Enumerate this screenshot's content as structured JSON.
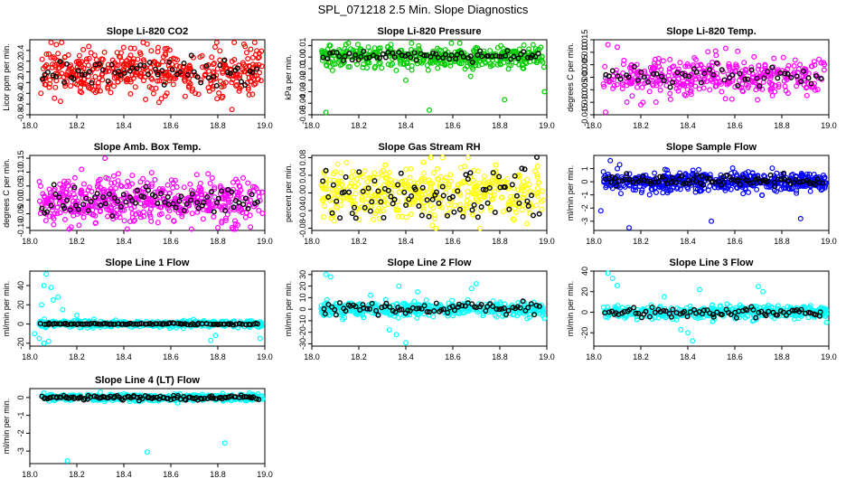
{
  "figure": {
    "title": "SPL_071218  2.5 Min. Slope Diagnostics",
    "background": "#ffffff",
    "overlay_color": "#000000",
    "marker": "open-circle"
  },
  "chart_data": [
    {
      "id": "p1",
      "type": "scatter",
      "title": "Slope Li-820 CO2",
      "ylabel": "Licor ppm per min.",
      "color": "#ff0000",
      "xlim": [
        18.0,
        19.0
      ],
      "ylim": [
        -0.8,
        0.6
      ],
      "xticks": [
        18.0,
        18.2,
        18.4,
        18.6,
        18.8,
        19.0
      ],
      "xticklabels": [
        "18.0",
        "18.2",
        "18.4",
        "18.6",
        "18.8",
        "19.0"
      ],
      "yticks": [
        -0.8,
        -0.6,
        -0.4,
        -0.2,
        0.0,
        0.2,
        0.4
      ],
      "yticklabels": [
        "-0.8",
        "-0.6",
        "-0.4",
        "-0.2",
        "0.0",
        "0.2",
        "0.4"
      ],
      "cloud": {
        "n": 460,
        "center": 0.0,
        "spread": 0.22,
        "min": -0.75,
        "max": 0.55
      },
      "overlay": {
        "n": 60,
        "center": 0.0,
        "spread": 0.12
      },
      "outliers": [
        {
          "x": 18.87,
          "y": 0.55
        },
        {
          "x": 18.86,
          "y": -0.7
        },
        {
          "x": 18.56,
          "y": -0.5
        }
      ]
    },
    {
      "id": "p2",
      "type": "scatter",
      "title": "Slope Li-820 Pressure",
      "ylabel": "kPa per min.",
      "color": "#00cc00",
      "xlim": [
        18.0,
        19.0
      ],
      "ylim": [
        -0.05,
        0.015
      ],
      "xticks": [
        18.0,
        18.2,
        18.4,
        18.6,
        18.8,
        19.0
      ],
      "xticklabels": [
        "18.0",
        "18.2",
        "18.4",
        "18.6",
        "18.8",
        "19.0"
      ],
      "yticks": [
        -0.05,
        -0.04,
        -0.03,
        -0.02,
        -0.01,
        0.0,
        0.01
      ],
      "yticklabels": [
        "-0.05",
        "-0.04",
        "-0.03",
        "-0.02",
        "-0.01",
        "0.00",
        "0.01"
      ],
      "cloud": {
        "n": 420,
        "center": 0.0,
        "spread": 0.005,
        "min": -0.022,
        "max": 0.012
      },
      "overlay": {
        "n": 70,
        "center": 0.001,
        "spread": 0.002
      },
      "outliers": [
        {
          "x": 18.06,
          "y": -0.048
        },
        {
          "x": 18.5,
          "y": -0.046
        },
        {
          "x": 18.82,
          "y": -0.037
        },
        {
          "x": 18.99,
          "y": -0.03
        },
        {
          "x": 18.4,
          "y": -0.02
        }
      ]
    },
    {
      "id": "p3",
      "type": "scatter",
      "title": "Slope Li-820 Temp.",
      "ylabel": "degrees C per min.",
      "color": "#ff00ff",
      "xlim": [
        18.0,
        19.0
      ],
      "ylim": [
        -0.015,
        0.015
      ],
      "xticks": [
        18.0,
        18.2,
        18.4,
        18.6,
        18.8,
        19.0
      ],
      "xticklabels": [
        "18.0",
        "18.2",
        "18.4",
        "18.6",
        "18.8",
        "19.0"
      ],
      "yticks": [
        -0.015,
        -0.01,
        -0.005,
        0.0,
        0.005,
        0.01,
        0.015
      ],
      "yticklabels": [
        "-0.015",
        "-0.010",
        "-0.005",
        "0.000",
        "0.005",
        "0.010",
        "0.015"
      ],
      "cloud": {
        "n": 380,
        "center": 0.0,
        "spread": 0.004,
        "min": -0.014,
        "max": 0.014
      },
      "overlay": {
        "n": 55,
        "center": 0.0,
        "spread": 0.002
      },
      "outliers": [
        {
          "x": 18.06,
          "y": 0.013
        },
        {
          "x": 18.1,
          "y": 0.012
        },
        {
          "x": 18.2,
          "y": -0.011
        },
        {
          "x": 18.05,
          "y": -0.014
        }
      ]
    },
    {
      "id": "p4",
      "type": "scatter",
      "title": "Slope Amb. Box Temp.",
      "ylabel": "degrees C per min.",
      "color": "#ff00ff",
      "xlim": [
        18.0,
        19.0
      ],
      "ylim": [
        -0.11,
        0.16
      ],
      "xticks": [
        18.0,
        18.2,
        18.4,
        18.6,
        18.8,
        19.0
      ],
      "xticklabels": [
        "18.0",
        "18.2",
        "18.4",
        "18.6",
        "18.8",
        "19.0"
      ],
      "yticks": [
        -0.1,
        -0.05,
        0.0,
        0.05,
        0.1,
        0.15
      ],
      "yticklabels": [
        "-0.10",
        "-0.05",
        "0.00",
        "0.05",
        "0.10",
        "0.15"
      ],
      "cloud": {
        "n": 520,
        "center": 0.0,
        "spread": 0.04,
        "min": -0.105,
        "max": 0.13
      },
      "overlay": {
        "n": 75,
        "center": 0.0,
        "spread": 0.03
      },
      "outliers": [
        {
          "x": 18.32,
          "y": 0.15
        },
        {
          "x": 18.8,
          "y": -0.1
        },
        {
          "x": 18.22,
          "y": 0.11
        }
      ]
    },
    {
      "id": "p5",
      "type": "scatter",
      "title": "Slope Gas Stream RH",
      "ylabel": "percent per min.",
      "color": "#ffff00",
      "xlim": [
        18.0,
        19.0
      ],
      "ylim": [
        -0.085,
        0.085
      ],
      "xticks": [
        18.0,
        18.2,
        18.4,
        18.6,
        18.8,
        19.0
      ],
      "xticklabels": [
        "18.0",
        "18.2",
        "18.4",
        "18.6",
        "18.8",
        "19.0"
      ],
      "yticks": [
        -0.08,
        -0.04,
        0.0,
        0.04,
        0.08
      ],
      "yticklabels": [
        "-0.08",
        "-0.04",
        "0.00",
        "0.04",
        "0.08"
      ],
      "cloud": {
        "n": 430,
        "center": 0.0,
        "spread": 0.032,
        "min": -0.08,
        "max": 0.08
      },
      "overlay": {
        "n": 85,
        "center": 0.0,
        "spread": 0.03
      },
      "outliers": []
    },
    {
      "id": "p6",
      "type": "scatter",
      "title": "Slope Sample Flow",
      "ylabel": "ml/min per min.",
      "color": "#0000ff",
      "xlim": [
        18.0,
        19.0
      ],
      "ylim": [
        -3.7,
        2.0
      ],
      "xticks": [
        18.0,
        18.2,
        18.4,
        18.6,
        18.8,
        19.0
      ],
      "xticklabels": [
        "18.0",
        "18.2",
        "18.4",
        "18.6",
        "18.8",
        "19.0"
      ],
      "yticks": [
        -3,
        -2,
        -1,
        0,
        1
      ],
      "yticklabels": [
        "-3",
        "-2",
        "-1",
        "0",
        "1"
      ],
      "cloud": {
        "n": 540,
        "center": 0.0,
        "spread": 0.35,
        "min": -1.5,
        "max": 1.2
      },
      "overlay": {
        "n": 95,
        "center": 0.1,
        "spread": 0.2
      },
      "outliers": [
        {
          "x": 18.07,
          "y": 1.6
        },
        {
          "x": 18.11,
          "y": 1.3
        },
        {
          "x": 18.15,
          "y": -3.5
        },
        {
          "x": 18.5,
          "y": -3.0
        },
        {
          "x": 18.03,
          "y": -2.2
        },
        {
          "x": 18.88,
          "y": -2.8
        },
        {
          "x": 18.1,
          "y": 1.0
        }
      ]
    },
    {
      "id": "p7",
      "type": "scatter",
      "title": "Slope Line 1 Flow",
      "ylabel": "ml/min per min.",
      "color": "#00ffff",
      "xlim": [
        18.0,
        19.0
      ],
      "ylim": [
        -23,
        55
      ],
      "xticks": [
        18.0,
        18.2,
        18.4,
        18.6,
        18.8,
        19.0
      ],
      "xticklabels": [
        "18.0",
        "18.2",
        "18.4",
        "18.6",
        "18.8",
        "19.0"
      ],
      "yticks": [
        -20,
        0,
        20,
        40
      ],
      "yticklabels": [
        "-20",
        "0",
        "20",
        "40"
      ],
      "cloud": {
        "n": 380,
        "center": 0.0,
        "spread": 1.8,
        "min": -6,
        "max": 6
      },
      "overlay": {
        "n": 100,
        "center": 0.0,
        "spread": 0.4
      },
      "outliers": [
        {
          "x": 18.07,
          "y": 52
        },
        {
          "x": 18.06,
          "y": 40
        },
        {
          "x": 18.09,
          "y": 38
        },
        {
          "x": 18.1,
          "y": 25
        },
        {
          "x": 18.12,
          "y": 28
        },
        {
          "x": 18.05,
          "y": 20
        },
        {
          "x": 18.14,
          "y": 15
        },
        {
          "x": 18.08,
          "y": -18
        },
        {
          "x": 18.04,
          "y": -15
        },
        {
          "x": 18.02,
          "y": -10
        },
        {
          "x": 18.77,
          "y": -17
        },
        {
          "x": 18.79,
          "y": -12
        },
        {
          "x": 18.98,
          "y": -15
        },
        {
          "x": 18.2,
          "y": 9
        },
        {
          "x": 18.06,
          "y": -20
        }
      ]
    },
    {
      "id": "p8",
      "type": "scatter",
      "title": "Slope Line 2 Flow",
      "ylabel": "ml/min per min.",
      "color": "#00ffff",
      "xlim": [
        18.0,
        19.0
      ],
      "ylim": [
        -32,
        33
      ],
      "xticks": [
        18.0,
        18.2,
        18.4,
        18.6,
        18.8,
        19.0
      ],
      "xticklabels": [
        "18.0",
        "18.2",
        "18.4",
        "18.6",
        "18.8",
        "19.0"
      ],
      "yticks": [
        -30,
        -20,
        -10,
        0,
        10,
        20,
        30
      ],
      "yticklabels": [
        "-30",
        "-20",
        "-10",
        "0",
        "10",
        "20",
        "30"
      ],
      "cloud": {
        "n": 430,
        "center": 0.0,
        "spread": 3.0,
        "min": -12,
        "max": 12
      },
      "overlay": {
        "n": 80,
        "center": 0.0,
        "spread": 2.5
      },
      "outliers": [
        {
          "x": 18.06,
          "y": 30
        },
        {
          "x": 18.08,
          "y": 28
        },
        {
          "x": 18.4,
          "y": -29
        },
        {
          "x": 18.37,
          "y": 20
        },
        {
          "x": 18.33,
          "y": -18
        },
        {
          "x": 18.36,
          "y": -22
        },
        {
          "x": 18.45,
          "y": 15
        },
        {
          "x": 18.7,
          "y": 22
        },
        {
          "x": 18.68,
          "y": 18
        },
        {
          "x": 18.25,
          "y": 12
        },
        {
          "x": 18.99,
          "y": -8
        }
      ]
    },
    {
      "id": "p9",
      "type": "scatter",
      "title": "Slope Line 3 Flow",
      "ylabel": "ml/min per min.",
      "color": "#00ffff",
      "xlim": [
        18.0,
        19.0
      ],
      "ylim": [
        -33,
        40
      ],
      "xticks": [
        18.0,
        18.2,
        18.4,
        18.6,
        18.8,
        19.0
      ],
      "xticklabels": [
        "18.0",
        "18.2",
        "18.4",
        "18.6",
        "18.8",
        "19.0"
      ],
      "yticks": [
        -20,
        0,
        20,
        40
      ],
      "yticklabels": [
        "-20",
        "0",
        "20",
        "40"
      ],
      "cloud": {
        "n": 430,
        "center": 0.0,
        "spread": 3.0,
        "min": -12,
        "max": 12
      },
      "overlay": {
        "n": 80,
        "center": 0.0,
        "spread": 2.5
      },
      "outliers": [
        {
          "x": 18.06,
          "y": 38
        },
        {
          "x": 18.08,
          "y": 33
        },
        {
          "x": 18.1,
          "y": 26
        },
        {
          "x": 18.42,
          "y": -28
        },
        {
          "x": 18.4,
          "y": -20
        },
        {
          "x": 18.37,
          "y": -17
        },
        {
          "x": 18.45,
          "y": 22
        },
        {
          "x": 18.7,
          "y": 25
        },
        {
          "x": 18.72,
          "y": 20
        },
        {
          "x": 18.3,
          "y": 15
        },
        {
          "x": 18.99,
          "y": -10
        }
      ]
    },
    {
      "id": "p10",
      "type": "scatter",
      "title": "Slope Line 4 (LT) Flow",
      "ylabel": "ml/min per min.",
      "color": "#00ffff",
      "xlim": [
        18.0,
        19.0
      ],
      "ylim": [
        -3.7,
        0.5
      ],
      "xticks": [
        18.0,
        18.2,
        18.4,
        18.6,
        18.8,
        19.0
      ],
      "xticklabels": [
        "18.0",
        "18.2",
        "18.4",
        "18.6",
        "18.8",
        "19.0"
      ],
      "yticks": [
        -3,
        -2,
        -1,
        0
      ],
      "yticklabels": [
        "-3",
        "-2",
        "-1",
        "0"
      ],
      "cloud": {
        "n": 450,
        "center": 0.0,
        "spread": 0.09,
        "min": -0.4,
        "max": 0.35
      },
      "overlay": {
        "n": 110,
        "center": 0.0,
        "spread": 0.07
      },
      "outliers": [
        {
          "x": 18.5,
          "y": -3.05
        },
        {
          "x": 18.16,
          "y": -3.55
        },
        {
          "x": 18.83,
          "y": -2.55
        },
        {
          "x": 18.06,
          "y": 0.25
        },
        {
          "x": 18.3,
          "y": 0.3
        }
      ]
    }
  ]
}
